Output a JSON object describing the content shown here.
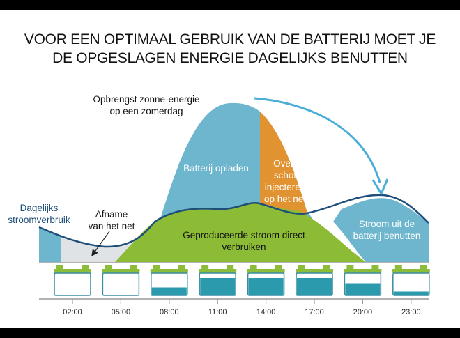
{
  "title": {
    "line1": "VOOR EEN OPTIMAAL GEBRUIK VAN DE BATTERIJ MOET JE",
    "line2": "DE OPGESLAGEN ENERGIE DAGELIJKS BENUTTEN"
  },
  "labels": {
    "solar_line1": "Opbrengst zonne-energie",
    "solar_line2": "op een zomerdag",
    "charge": "Batterij opladen",
    "excess_line1": "Over-",
    "excess_line2": "schot",
    "excess_line3": "injecteren",
    "excess_line4": "op het net",
    "daily_line1": "Dagelijks",
    "daily_line2": "stroomverbruik",
    "grid_line1": "Afname",
    "grid_line2": "van het net",
    "direct_line1": "Geproduceerde stroom direct",
    "direct_line2": "verbruiken",
    "use_line1": "Stroom uit de",
    "use_line2": "batterij benutten"
  },
  "timeline": {
    "times": [
      "02:00",
      "05:00",
      "08:00",
      "11:00",
      "14:00",
      "17:00",
      "20:00",
      "23:00"
    ],
    "battery_levels": [
      0,
      0,
      0.35,
      0.8,
      0.8,
      0.8,
      0.55,
      0.15
    ]
  },
  "colors": {
    "blue": "#6db6cd",
    "orange": "#e19331",
    "green": "#8cbb35",
    "grey": "#dfe3e6",
    "navy": "#1e4e7a",
    "battery_fill": "#2a9aac",
    "battery_cap": "#8bbd3a",
    "battery_outline": "#3a8ca4",
    "arrow": "#4aaed8"
  }
}
